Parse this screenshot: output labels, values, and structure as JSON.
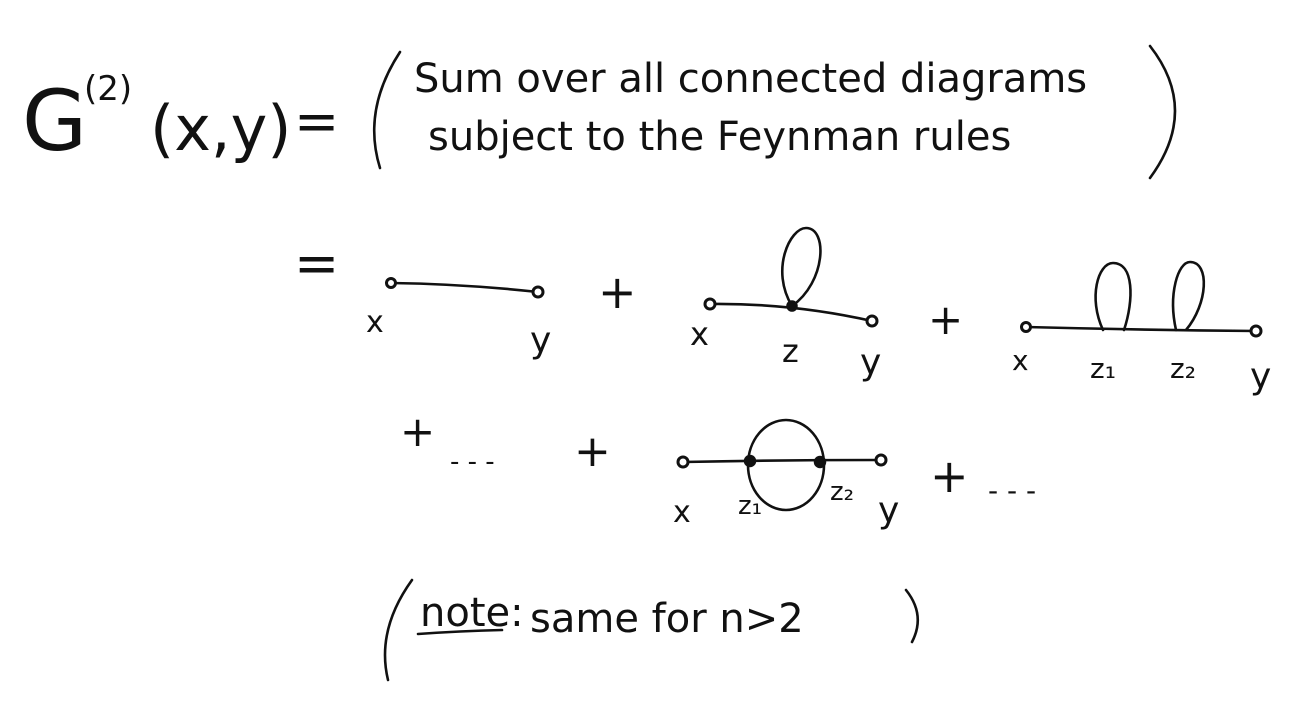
{
  "lhs": {
    "func": "G",
    "order": "(2)",
    "args": "(x,y)"
  },
  "equals": "=",
  "description_line1": "Sum over all connected diagrams",
  "description_line2": "subject to the Feynman rules",
  "plus": "+",
  "ellipsis": "- - -",
  "diagrams": {
    "free": {
      "labels": [
        "x",
        "y"
      ]
    },
    "one_loop": {
      "labels": [
        "x",
        "z",
        "y"
      ]
    },
    "two_loop": {
      "labels": [
        "x",
        "z₁",
        "z₂",
        "y"
      ]
    },
    "sunset": {
      "labels": [
        "x",
        "z₁",
        "z₂",
        "y"
      ]
    }
  },
  "note": {
    "open": "(",
    "word": "note:",
    "rest": "same for n>2",
    "close": ")"
  }
}
